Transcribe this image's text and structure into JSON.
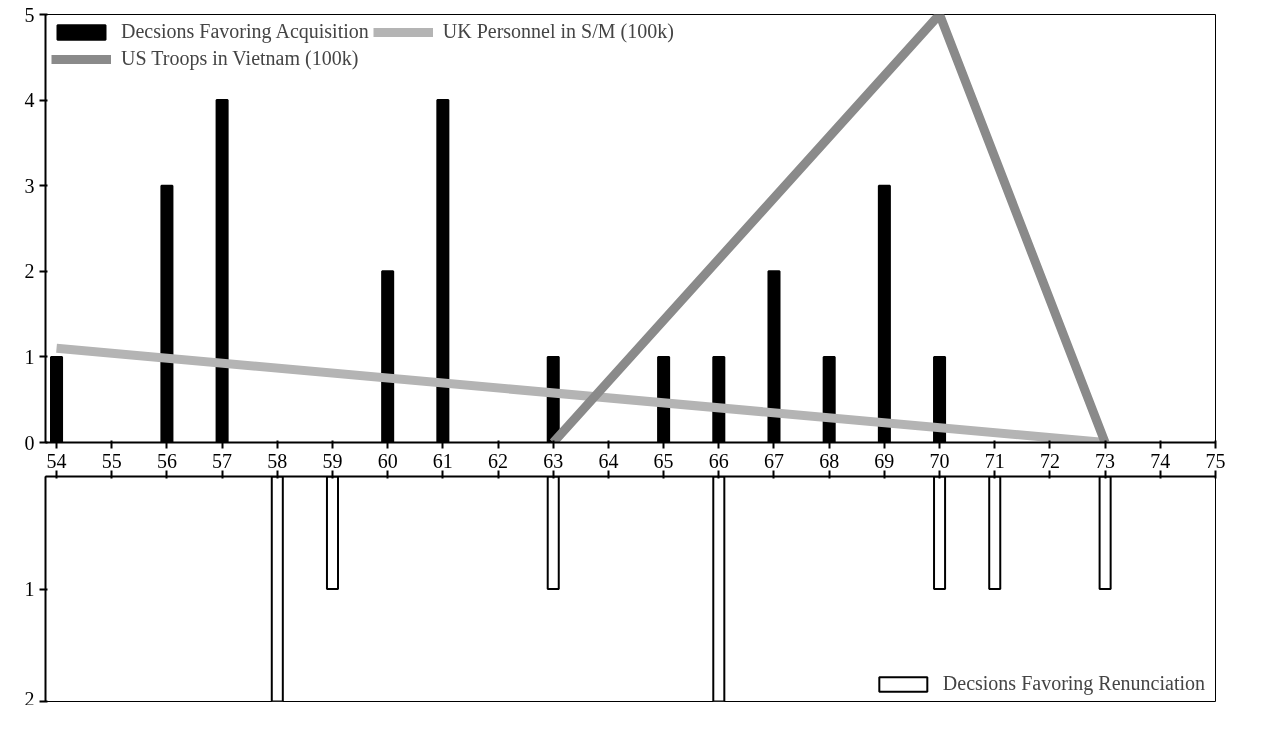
{
  "chart_data": [
    {
      "type": "bar",
      "xlim": [
        53.8,
        75
      ],
      "xticks": [
        54,
        55,
        56,
        57,
        58,
        59,
        60,
        61,
        62,
        63,
        64,
        65,
        66,
        67,
        68,
        69,
        70,
        71,
        72,
        73,
        74,
        75
      ],
      "ylim": [
        0,
        5
      ],
      "yticks": [
        0,
        1,
        2,
        3,
        4,
        5
      ],
      "grid": false,
      "legend": "top left",
      "series": [
        {
          "name": "Decsions Favoring Acquisition",
          "color": "#000000",
          "x": [
            54,
            56,
            57,
            60,
            61,
            63,
            65,
            66,
            67,
            68,
            69,
            70
          ],
          "values": [
            1,
            3,
            4,
            2,
            4,
            1,
            1,
            1,
            2,
            1,
            3,
            1
          ]
        },
        {
          "name": "UK Personnel in S/M (100k)",
          "type": "line",
          "color": "#b4b4b4",
          "x": [
            54,
            73
          ],
          "values": [
            1.1,
            0
          ]
        },
        {
          "name": "US Troops in Vietnam (100k)",
          "type": "line",
          "color": "#8a8a8a",
          "x": [
            63,
            70,
            73
          ],
          "values": [
            0,
            5,
            0
          ]
        }
      ]
    },
    {
      "type": "bar",
      "xlim": [
        53.8,
        75
      ],
      "xticks": [
        54,
        55,
        56,
        57,
        58,
        59,
        60,
        61,
        62,
        63,
        64,
        65,
        66,
        67,
        68,
        69,
        70,
        71,
        72,
        73,
        74,
        75
      ],
      "ylim": [
        2,
        0
      ],
      "yticks": [
        1,
        2
      ],
      "tick_labels": "y",
      "grid": false,
      "legend": "bottom right",
      "series": [
        {
          "name": "Decsions Favoring Renunciation",
          "color": "#ffffff",
          "x": [
            58,
            59,
            63,
            66,
            70,
            71,
            73
          ],
          "values": [
            2,
            1,
            1,
            2,
            1,
            1,
            1
          ]
        }
      ]
    }
  ]
}
